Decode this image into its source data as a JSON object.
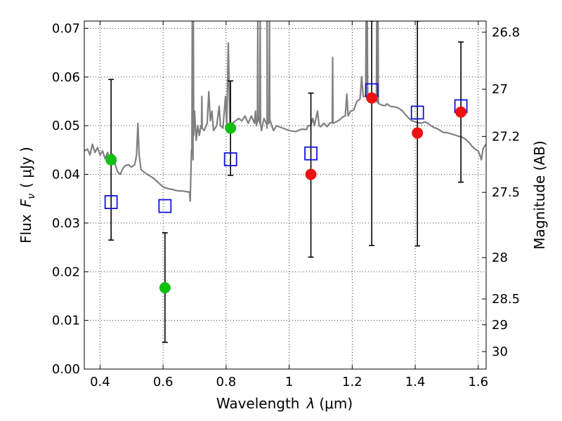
{
  "chart_data": {
    "type": "scatter",
    "x_ticks": [
      "0.4",
      "0.6",
      "0.8",
      "1",
      "1.2",
      "1.4",
      "1.6"
    ],
    "x_tick_values": [
      0.4,
      0.6,
      0.8,
      1.0,
      1.2,
      1.4,
      1.6
    ],
    "y_ticks": [
      "0.00",
      "0.01",
      "0.02",
      "0.03",
      "0.04",
      "0.05",
      "0.06",
      "0.07"
    ],
    "y_tick_values": [
      0.0,
      0.01,
      0.02,
      0.03,
      0.04,
      0.05,
      0.06,
      0.07
    ],
    "y2_ticks": [
      "26.8",
      "27",
      "27.2",
      "27.5",
      "28",
      "28.5",
      "29",
      "30"
    ],
    "y2_tick_fluxes": [
      0.0692,
      0.0575,
      0.0478,
      0.0363,
      0.0229,
      0.0144,
      0.0091,
      0.0036
    ],
    "xlim": [
      0.35,
      1.625
    ],
    "ylim": [
      0.0,
      0.0715
    ],
    "grid": true,
    "xlabel": "Wavelength",
    "xlabel_symbol": "λ",
    "xlabel_unit": "(μm)",
    "ylabel": "Flux",
    "ylabel_symbol": "F",
    "ylabel_subscript": "ν",
    "ylabel_unit": "( μJy )",
    "y2label": "Magnitude (AB)",
    "colors": {
      "model_spectrum": "#808080",
      "green_points": "#11c011",
      "red_points": "#ee1111",
      "model_boxes": "#1111dd",
      "error_bars": "#000000"
    },
    "observed_points": [
      {
        "x": 0.435,
        "y": 0.043,
        "err": [
          0.0265,
          0.0595
        ],
        "color": "green"
      },
      {
        "x": 0.606,
        "y": 0.0167,
        "err": [
          0.0055,
          0.028
        ],
        "color": "green"
      },
      {
        "x": 0.814,
        "y": 0.0495,
        "err": [
          0.0398,
          0.0592
        ],
        "color": "green"
      },
      {
        "x": 1.069,
        "y": 0.04,
        "err": [
          0.023,
          0.0567
        ],
        "color": "red"
      },
      {
        "x": 1.262,
        "y": 0.0557,
        "err": [
          0.0254,
          0.0715
        ],
        "color": "red"
      },
      {
        "x": 1.407,
        "y": 0.0485,
        "err": [
          0.0253,
          0.0715
        ],
        "color": "red"
      },
      {
        "x": 1.545,
        "y": 0.0528,
        "err": [
          0.0384,
          0.0672
        ],
        "color": "red"
      }
    ],
    "model_fluxes": [
      {
        "x": 0.435,
        "y": 0.0343
      },
      {
        "x": 0.606,
        "y": 0.0335
      },
      {
        "x": 0.814,
        "y": 0.0431
      },
      {
        "x": 1.069,
        "y": 0.0443
      },
      {
        "x": 1.262,
        "y": 0.0573
      },
      {
        "x": 1.407,
        "y": 0.0527
      },
      {
        "x": 1.545,
        "y": 0.054
      }
    ],
    "spectrum": [
      [
        0.35,
        0.0448
      ],
      [
        0.36,
        0.0452
      ],
      [
        0.368,
        0.044
      ],
      [
        0.376,
        0.0462
      ],
      [
        0.384,
        0.0445
      ],
      [
        0.392,
        0.0455
      ],
      [
        0.4,
        0.044
      ],
      [
        0.408,
        0.0448
      ],
      [
        0.416,
        0.0432
      ],
      [
        0.424,
        0.0445
      ],
      [
        0.432,
        0.0425
      ],
      [
        0.44,
        0.0442
      ],
      [
        0.448,
        0.042
      ],
      [
        0.456,
        0.0405
      ],
      [
        0.464,
        0.04
      ],
      [
        0.472,
        0.0412
      ],
      [
        0.48,
        0.0418
      ],
      [
        0.49,
        0.042
      ],
      [
        0.5,
        0.0415
      ],
      [
        0.51,
        0.042
      ],
      [
        0.516,
        0.044
      ],
      [
        0.52,
        0.0505
      ],
      [
        0.524,
        0.044
      ],
      [
        0.53,
        0.041
      ],
      [
        0.54,
        0.0404
      ],
      [
        0.55,
        0.04
      ],
      [
        0.56,
        0.0396
      ],
      [
        0.57,
        0.0392
      ],
      [
        0.58,
        0.0386
      ],
      [
        0.59,
        0.038
      ],
      [
        0.6,
        0.0374
      ],
      [
        0.61,
        0.0372
      ],
      [
        0.62,
        0.037
      ],
      [
        0.63,
        0.0369
      ],
      [
        0.64,
        0.0367
      ],
      [
        0.65,
        0.0366
      ],
      [
        0.66,
        0.0366
      ],
      [
        0.67,
        0.0365
      ],
      [
        0.678,
        0.0364
      ],
      [
        0.684,
        0.0364
      ],
      [
        0.686,
        0.0345
      ],
      [
        0.69,
        0.045
      ],
      [
        0.695,
        0.043
      ],
      [
        0.7,
        0.053
      ],
      [
        0.705,
        0.047
      ],
      [
        0.71,
        0.05
      ],
      [
        0.715,
        0.048
      ],
      [
        0.72,
        0.05
      ],
      [
        0.73,
        0.049
      ],
      [
        0.74,
        0.0505
      ],
      [
        0.745,
        0.057
      ],
      [
        0.75,
        0.051
      ],
      [
        0.755,
        0.053
      ],
      [
        0.76,
        0.049
      ],
      [
        0.77,
        0.05
      ],
      [
        0.778,
        0.054
      ],
      [
        0.782,
        0.05
      ],
      [
        0.79,
        0.0495
      ],
      [
        0.798,
        0.056
      ],
      [
        0.802,
        0.05
      ],
      [
        0.807,
        0.067
      ],
      [
        0.812,
        0.05
      ],
      [
        0.82,
        0.0505
      ],
      [
        0.83,
        0.051
      ],
      [
        0.84,
        0.0515
      ],
      [
        0.85,
        0.051
      ],
      [
        0.86,
        0.052
      ],
      [
        0.87,
        0.0505
      ],
      [
        0.88,
        0.052
      ],
      [
        0.89,
        0.0505
      ],
      [
        0.893,
        0.053
      ],
      [
        0.896,
        0.05
      ],
      [
        0.905,
        0.052
      ],
      [
        0.912,
        0.049
      ],
      [
        0.92,
        0.0515
      ],
      [
        0.93,
        0.0495
      ],
      [
        0.94,
        0.051
      ],
      [
        0.95,
        0.049
      ],
      [
        0.96,
        0.05
      ],
      [
        0.98,
        0.0495
      ],
      [
        1.0,
        0.049
      ],
      [
        1.02,
        0.0488
      ],
      [
        1.04,
        0.0493
      ],
      [
        1.055,
        0.0492
      ],
      [
        1.06,
        0.05
      ],
      [
        1.068,
        0.05
      ],
      [
        1.075,
        0.0515
      ],
      [
        1.08,
        0.05
      ],
      [
        1.09,
        0.053
      ],
      [
        1.095,
        0.05
      ],
      [
        1.1,
        0.0498
      ],
      [
        1.11,
        0.0505
      ],
      [
        1.12,
        0.0498
      ],
      [
        1.13,
        0.0506
      ],
      [
        1.14,
        0.0505
      ],
      [
        1.15,
        0.0508
      ],
      [
        1.16,
        0.0512
      ],
      [
        1.17,
        0.0518
      ],
      [
        1.178,
        0.052
      ],
      [
        1.183,
        0.0565
      ],
      [
        1.187,
        0.052
      ],
      [
        1.195,
        0.053
      ],
      [
        1.205,
        0.0532
      ],
      [
        1.215,
        0.055
      ],
      [
        1.225,
        0.0555
      ],
      [
        1.23,
        0.06
      ],
      [
        1.235,
        0.056
      ],
      [
        1.245,
        0.056
      ],
      [
        1.255,
        0.0562
      ],
      [
        1.265,
        0.0558
      ],
      [
        1.275,
        0.0555
      ],
      [
        1.285,
        0.0545
      ],
      [
        1.295,
        0.0542
      ],
      [
        1.305,
        0.0541
      ],
      [
        1.31,
        0.0545
      ],
      [
        1.32,
        0.054
      ],
      [
        1.33,
        0.0539
      ],
      [
        1.34,
        0.0538
      ],
      [
        1.35,
        0.0535
      ],
      [
        1.36,
        0.053
      ],
      [
        1.37,
        0.0522
      ],
      [
        1.38,
        0.0515
      ],
      [
        1.39,
        0.051
      ],
      [
        1.4,
        0.0508
      ],
      [
        1.41,
        0.0506
      ],
      [
        1.42,
        0.0505
      ],
      [
        1.43,
        0.0508
      ],
      [
        1.44,
        0.0505
      ],
      [
        1.45,
        0.05
      ],
      [
        1.46,
        0.0496
      ],
      [
        1.47,
        0.0494
      ],
      [
        1.48,
        0.049
      ],
      [
        1.49,
        0.0486
      ],
      [
        1.5,
        0.0486
      ],
      [
        1.51,
        0.0484
      ],
      [
        1.52,
        0.0482
      ],
      [
        1.53,
        0.048
      ],
      [
        1.54,
        0.0478
      ],
      [
        1.55,
        0.0476
      ],
      [
        1.56,
        0.0472
      ],
      [
        1.57,
        0.0466
      ],
      [
        1.58,
        0.0458
      ],
      [
        1.59,
        0.0452
      ],
      [
        1.6,
        0.0448
      ],
      [
        1.605,
        0.044
      ],
      [
        1.61,
        0.043
      ],
      [
        1.615,
        0.0452
      ],
      [
        1.62,
        0.0458
      ],
      [
        1.625,
        0.0462
      ]
    ],
    "emission_spikes": [
      {
        "x": 0.6925,
        "peak": 0.0715
      },
      {
        "x": 0.696,
        "peak": 0.0715
      },
      {
        "x": 0.723,
        "peak": 0.056
      },
      {
        "x": 0.9005,
        "peak": 0.0715
      },
      {
        "x": 0.908,
        "peak": 0.0715
      },
      {
        "x": 0.93,
        "peak": 0.0715
      },
      {
        "x": 0.9375,
        "peak": 0.0715
      },
      {
        "x": 1.138,
        "peak": 0.064
      },
      {
        "x": 1.244,
        "peak": 0.0715
      },
      {
        "x": 1.248,
        "peak": 0.0715
      },
      {
        "x": 1.278,
        "peak": 0.0715
      },
      {
        "x": 1.282,
        "peak": 0.0715
      }
    ]
  }
}
